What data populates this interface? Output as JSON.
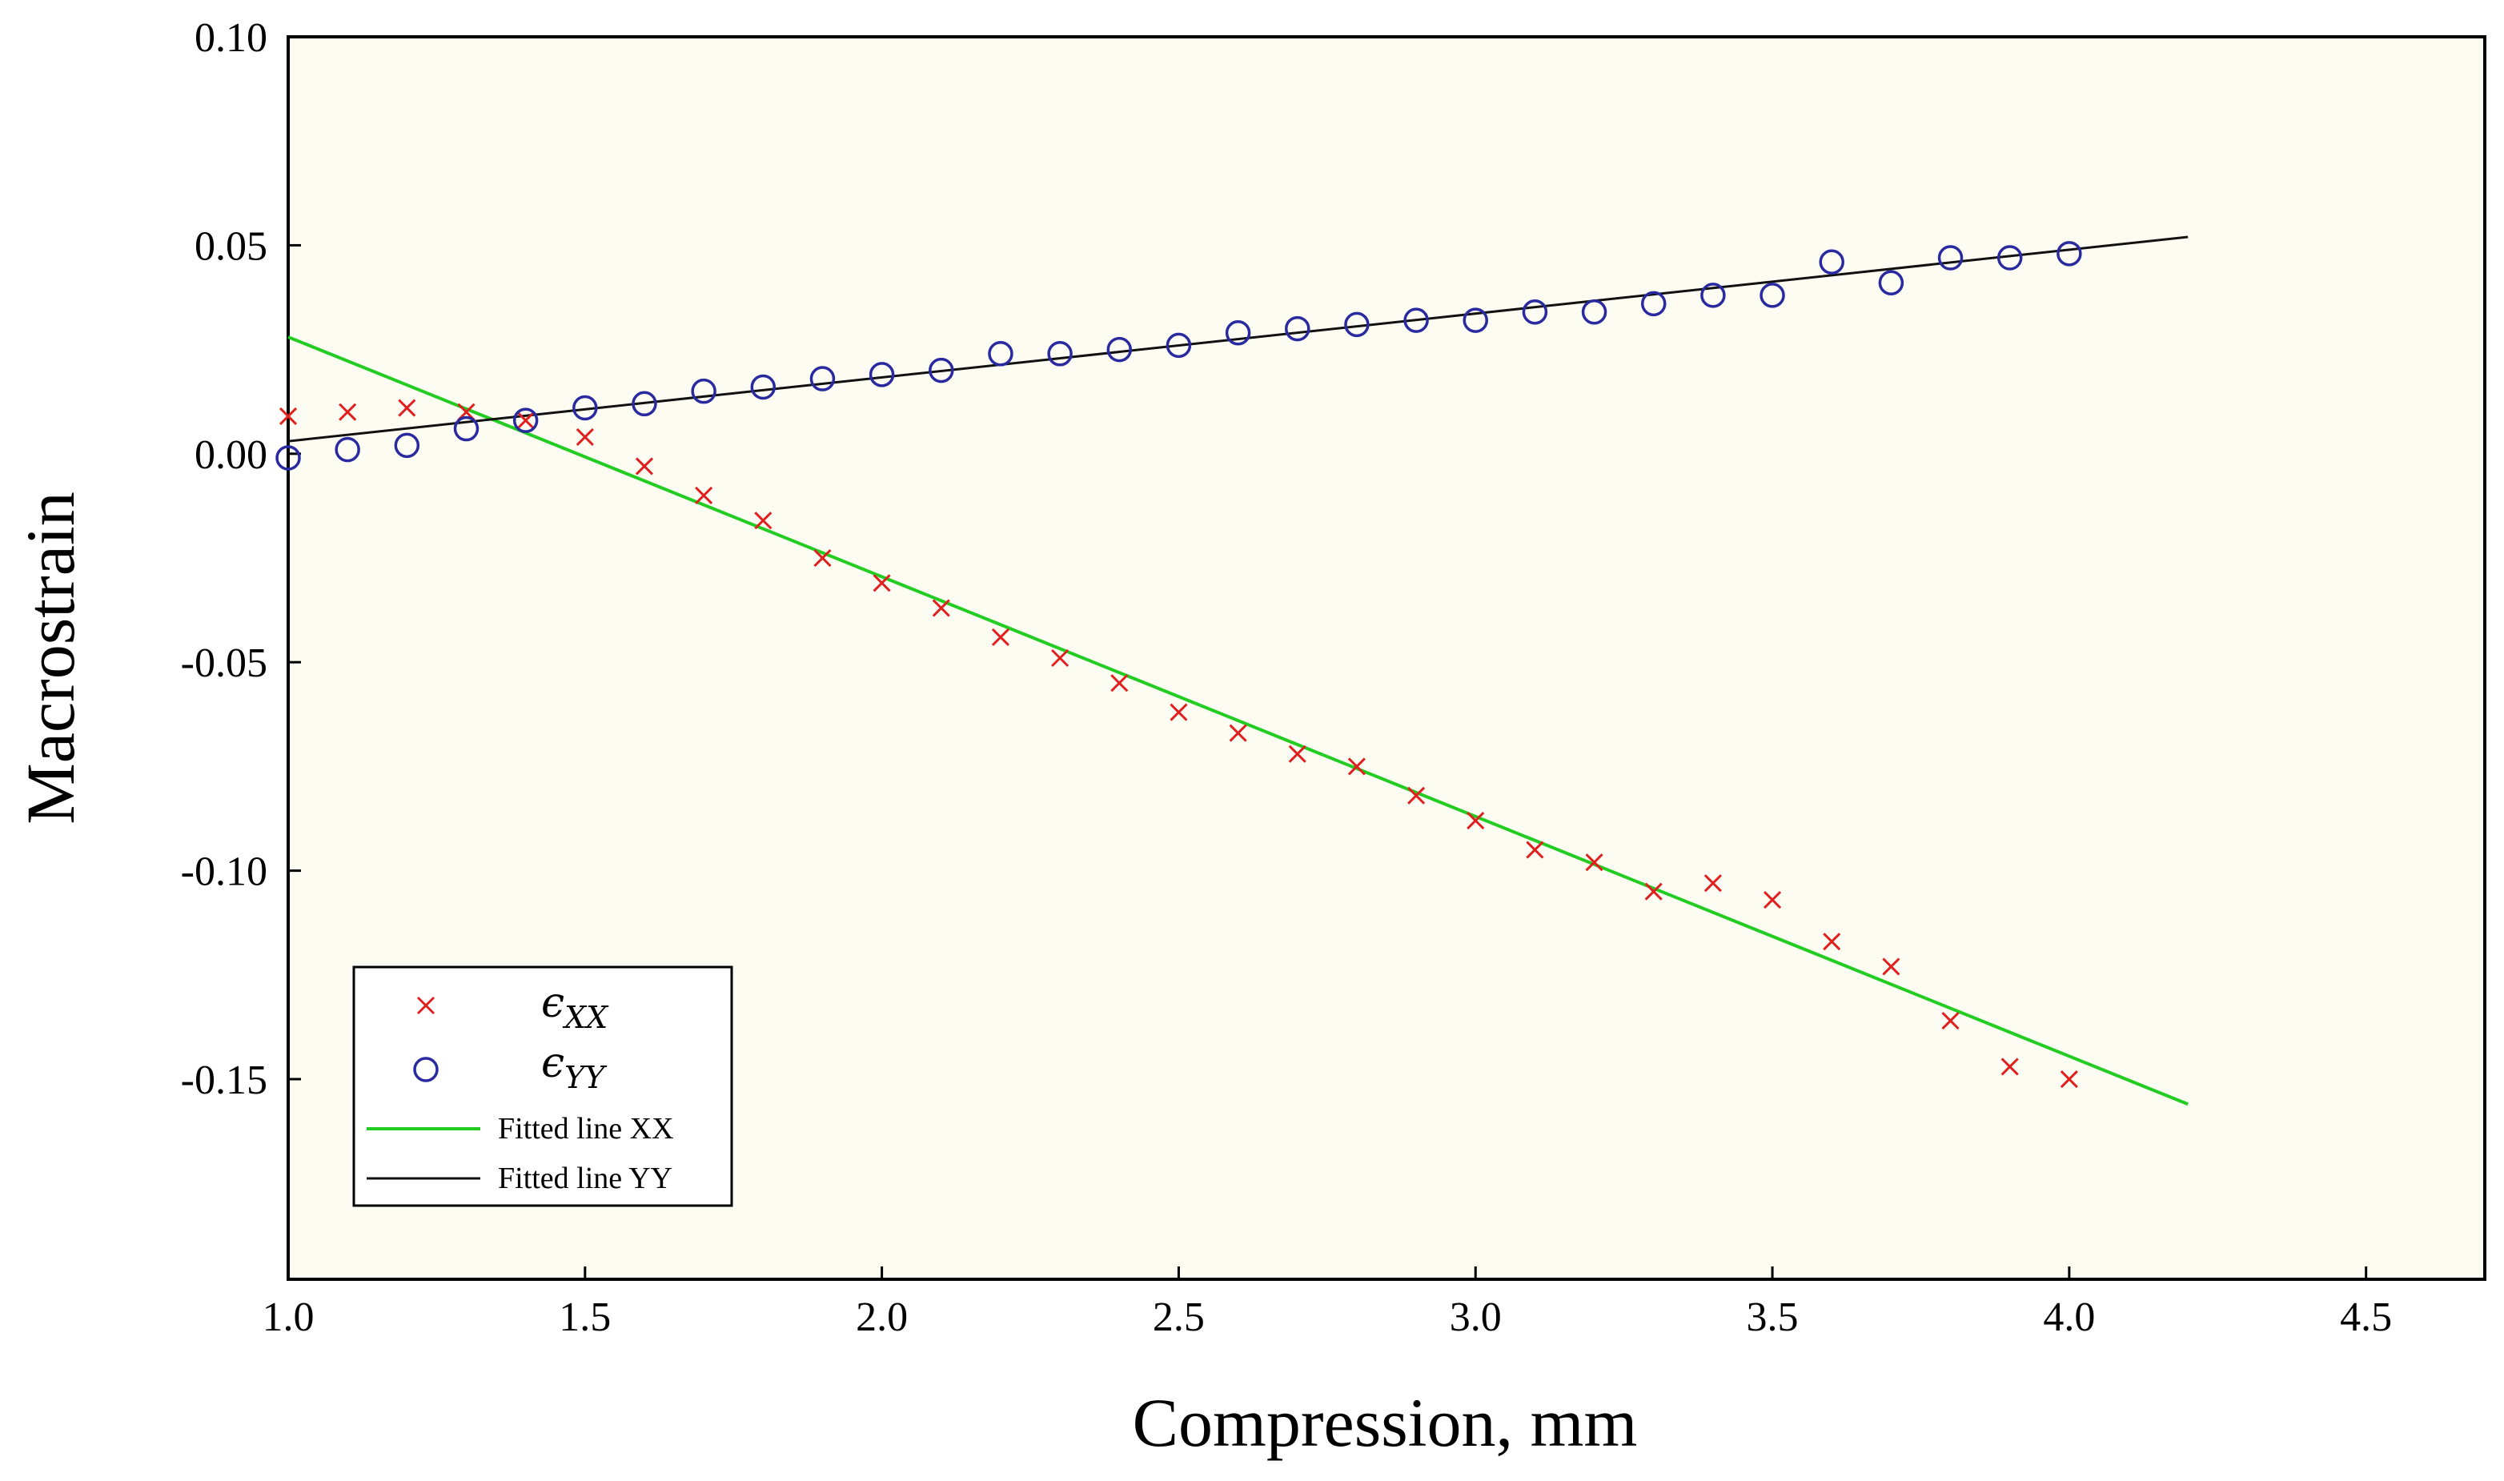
{
  "chart_data": {
    "type": "scatter",
    "title": "",
    "xlabel": "Compression, mm",
    "ylabel": "Macrostrain",
    "xlim": [
      1.0,
      4.7
    ],
    "ylim": [
      -0.198,
      0.1
    ],
    "xticks": [
      1.0,
      1.5,
      2.0,
      2.5,
      3.0,
      3.5,
      4.0,
      4.5
    ],
    "xtick_labels": [
      "1.0",
      "1.5",
      "2.0",
      "2.5",
      "3.0",
      "3.5",
      "4.0",
      "4.5"
    ],
    "yticks": [
      0.1,
      0.05,
      0.0,
      -0.05,
      -0.1,
      -0.15
    ],
    "ytick_labels": [
      "0.10",
      "0.05",
      "0.00",
      "-0.05",
      "-0.10",
      "-0.15"
    ],
    "grid": false,
    "background": "#fdfcf2",
    "legend_position": "bottom-left",
    "x": [
      1.0,
      1.1,
      1.2,
      1.3,
      1.4,
      1.5,
      1.6,
      1.7,
      1.8,
      1.9,
      2.0,
      2.1,
      2.2,
      2.3,
      2.4,
      2.5,
      2.6,
      2.7,
      2.8,
      2.9,
      3.0,
      3.1,
      3.2,
      3.3,
      3.4,
      3.5,
      3.6,
      3.7,
      3.8,
      3.9,
      4.0
    ],
    "series": [
      {
        "name": "ε_XX",
        "legend_main": "ϵ",
        "legend_sub": "XX",
        "marker": "x",
        "color": "#e0201f",
        "values": [
          0.009,
          0.01,
          0.011,
          0.01,
          0.008,
          0.004,
          -0.003,
          -0.01,
          -0.016,
          -0.025,
          -0.031,
          -0.037,
          -0.044,
          -0.049,
          -0.055,
          -0.062,
          -0.067,
          -0.072,
          -0.075,
          -0.082,
          -0.088,
          -0.095,
          -0.098,
          -0.105,
          -0.103,
          -0.107,
          -0.117,
          -0.123,
          -0.136,
          -0.147,
          -0.15
        ]
      },
      {
        "name": "ε_YY",
        "legend_main": "ϵ",
        "legend_sub": "YY",
        "marker": "o",
        "color": "#2a2aa0",
        "values": [
          -0.001,
          0.001,
          0.002,
          0.006,
          0.008,
          0.011,
          0.012,
          0.015,
          0.016,
          0.018,
          0.019,
          0.02,
          0.024,
          0.024,
          0.025,
          0.026,
          0.029,
          0.03,
          0.031,
          0.032,
          0.032,
          0.034,
          0.034,
          0.036,
          0.038,
          0.038,
          0.046,
          0.041,
          0.047,
          0.047,
          0.048
        ]
      }
    ],
    "fit_lines": [
      {
        "name": "Fitted line XX",
        "color": "#22cc22",
        "x": [
          1.0,
          4.2
        ],
        "y": [
          0.028,
          -0.156
        ]
      },
      {
        "name": "Fitted line YY",
        "color": "#111111",
        "x": [
          1.0,
          4.2
        ],
        "y": [
          0.003,
          0.052
        ]
      }
    ]
  }
}
